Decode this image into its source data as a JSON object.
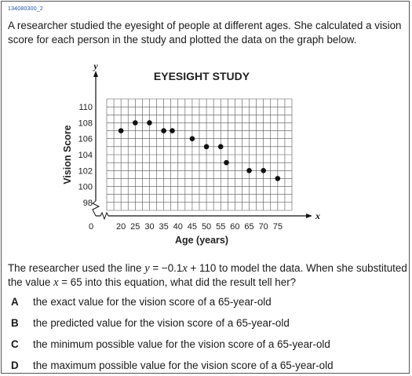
{
  "item_id": "134080300_2",
  "stem": "A researcher studied the eyesight of people at different ages. She calculated a vision score for each person in the study and plotted the data on the graph below.",
  "question": {
    "before": "The researcher used the line ",
    "var_y": "y",
    "equation": " = −0.1",
    "var_x": "x",
    "plus_const": " + 110 to model the data. When she substituted the value ",
    "var_x2": "x",
    "after": " = 65 into this equation, what did the result tell her?"
  },
  "choices": [
    {
      "letter": "A",
      "text": "the exact value for the vision score of a 65-year-old"
    },
    {
      "letter": "B",
      "text": "the predicted value for the vision score of a 65-year-old"
    },
    {
      "letter": "C",
      "text": "the minimum possible value for the vision score of a 65-year-old"
    },
    {
      "letter": "D",
      "text": "the maximum possible value for the vision score of a 65-year-old"
    }
  ],
  "chart_data": {
    "type": "scatter",
    "title": "EYESIGHT STUDY",
    "xlabel": "Age (years)",
    "ylabel": "Vision Score",
    "x_axis_var": "x",
    "y_axis_var": "y",
    "x_ticks": [
      0,
      20,
      25,
      30,
      35,
      40,
      45,
      50,
      55,
      60,
      65,
      70,
      75
    ],
    "y_ticks": [
      98,
      100,
      102,
      104,
      106,
      108,
      110
    ],
    "xlim": [
      15,
      80
    ],
    "ylim": [
      97,
      111
    ],
    "x_axis_break": true,
    "y_axis_break": true,
    "grid": true,
    "points": [
      {
        "x": 20,
        "y": 107
      },
      {
        "x": 25,
        "y": 108
      },
      {
        "x": 30,
        "y": 108
      },
      {
        "x": 35,
        "y": 107
      },
      {
        "x": 38,
        "y": 107
      },
      {
        "x": 45,
        "y": 106
      },
      {
        "x": 50,
        "y": 105
      },
      {
        "x": 55,
        "y": 105
      },
      {
        "x": 57,
        "y": 103
      },
      {
        "x": 65,
        "y": 102
      },
      {
        "x": 70,
        "y": 102
      },
      {
        "x": 75,
        "y": 101
      }
    ],
    "colors": {
      "grid": "#555555",
      "axis": "#111111",
      "point": "#111111"
    }
  }
}
